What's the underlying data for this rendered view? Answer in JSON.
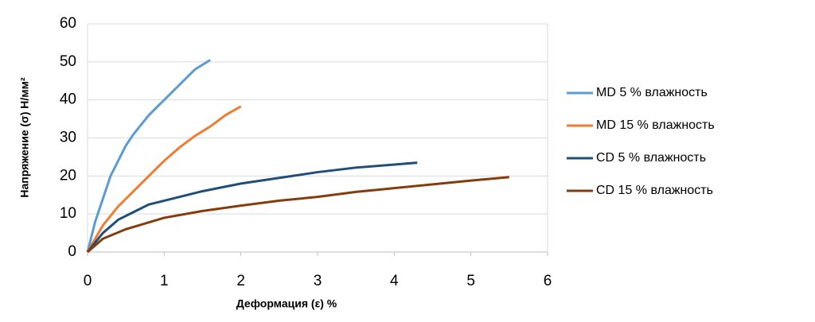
{
  "chart_data": {
    "type": "line",
    "xlabel": "Деформация (ε) %",
    "ylabel": "Напряжение (σ) Н/мм²",
    "xlim": [
      0,
      6
    ],
    "xticks": [
      0,
      1,
      2,
      3,
      4,
      5,
      6
    ],
    "ylim": [
      0,
      60
    ],
    "yticks": [
      0,
      10,
      20,
      30,
      40,
      50,
      60
    ],
    "grid": true,
    "legend": "right",
    "series": [
      {
        "name": "MD 5 % влажность",
        "color": "#5b9bd5",
        "x": [
          0,
          0.1,
          0.2,
          0.3,
          0.4,
          0.5,
          0.6,
          0.8,
          1.0,
          1.2,
          1.4,
          1.6
        ],
        "values": [
          0,
          8,
          14,
          20,
          24,
          28,
          31,
          36,
          40,
          44,
          48,
          50.5
        ]
      },
      {
        "name": "MD 15 % влажность",
        "color": "#ed7d31",
        "x": [
          0,
          0.2,
          0.4,
          0.6,
          0.8,
          1.0,
          1.2,
          1.4,
          1.6,
          1.8,
          2.0
        ],
        "values": [
          0,
          7,
          12,
          16,
          20,
          24,
          27.5,
          30.5,
          33,
          36,
          38.3
        ]
      },
      {
        "name": "CD 5 % влажность",
        "color": "#1f4e79",
        "x": [
          0,
          0.2,
          0.4,
          0.6,
          0.8,
          1.0,
          1.5,
          2.0,
          2.5,
          3.0,
          3.5,
          4.0,
          4.3
        ],
        "values": [
          0,
          5,
          8.5,
          10.5,
          12.5,
          13.5,
          16,
          18,
          19.5,
          21,
          22.2,
          23,
          23.5
        ]
      },
      {
        "name": "CD 15 % влажность",
        "color": "#843c0c",
        "x": [
          0,
          0.2,
          0.5,
          1.0,
          1.5,
          2.0,
          2.5,
          3.0,
          3.5,
          4.0,
          4.5,
          5.0,
          5.5
        ],
        "values": [
          0,
          3.5,
          6,
          9,
          10.8,
          12.2,
          13.5,
          14.5,
          15.8,
          16.8,
          17.8,
          18.8,
          19.7
        ]
      }
    ]
  }
}
